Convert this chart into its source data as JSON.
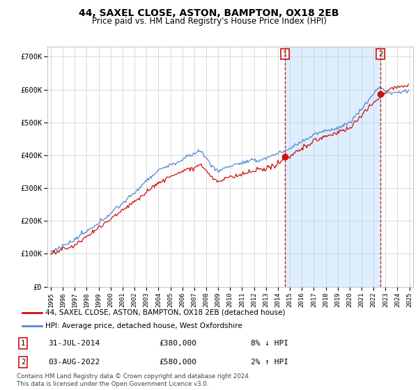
{
  "title": "44, SAXEL CLOSE, ASTON, BAMPTON, OX18 2EB",
  "subtitle": "Price paid vs. HM Land Registry's House Price Index (HPI)",
  "ylim": [
    0,
    730000
  ],
  "yticks": [
    0,
    100000,
    200000,
    300000,
    400000,
    500000,
    600000,
    700000
  ],
  "ytick_labels": [
    "£0",
    "£100K",
    "£200K",
    "£300K",
    "£400K",
    "£500K",
    "£600K",
    "£700K"
  ],
  "hpi_color": "#5588cc",
  "price_color": "#cc1111",
  "shade_color": "#ddeeff",
  "marker1_x": 2014.58,
  "marker1_label": "1",
  "marker1_date": "31-JUL-2014",
  "marker1_price": "£380,000",
  "marker1_info": "8% ↓ HPI",
  "marker2_x": 2022.58,
  "marker2_label": "2",
  "marker2_date": "03-AUG-2022",
  "marker2_price": "£580,000",
  "marker2_info": "2% ↑ HPI",
  "legend_line1": "44, SAXEL CLOSE, ASTON, BAMPTON, OX18 2EB (detached house)",
  "legend_line2": "HPI: Average price, detached house, West Oxfordshire",
  "footer": "Contains HM Land Registry data © Crown copyright and database right 2024.\nThis data is licensed under the Open Government Licence v3.0.",
  "background_color": "#ffffff",
  "grid_color": "#cccccc"
}
